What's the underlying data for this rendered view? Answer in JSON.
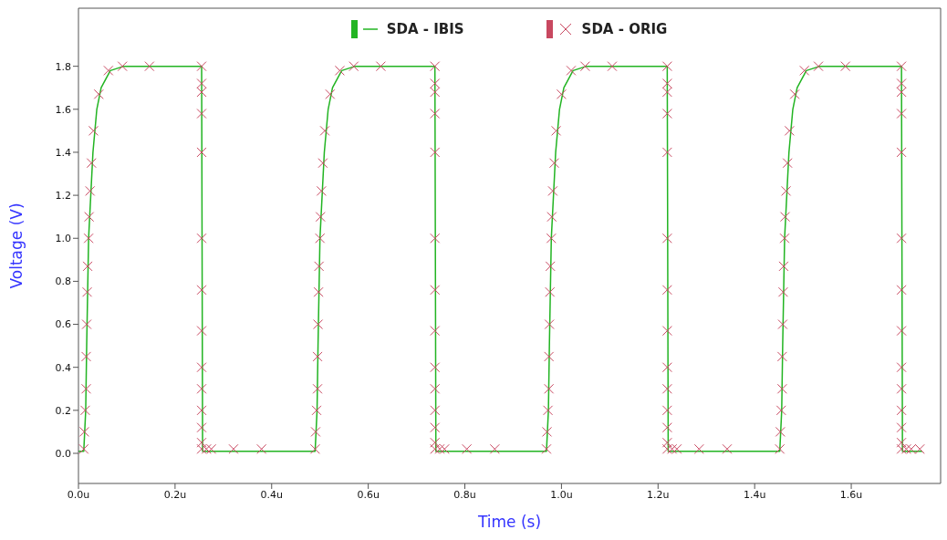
{
  "chart_data": {
    "type": "line",
    "xlabel": "Time (s)",
    "ylabel": "Voltage (V)",
    "legend": "top",
    "grid": false,
    "xlim": [
      0,
      1.785
    ],
    "ylim": [
      -0.14,
      2.07
    ],
    "xticks": [
      {
        "value": 0,
        "label": "0.0u"
      },
      {
        "value": 0.2,
        "label": "0.2u"
      },
      {
        "value": 0.4,
        "label": "0.4u"
      },
      {
        "value": 0.6,
        "label": "0.6u"
      },
      {
        "value": 0.8,
        "label": "0.8u"
      },
      {
        "value": 1.0,
        "label": "1.0u"
      },
      {
        "value": 1.2,
        "label": "1.2u"
      },
      {
        "value": 1.4,
        "label": "1.4u"
      },
      {
        "value": 1.6,
        "label": "1.6u"
      }
    ],
    "yticks": [
      {
        "value": 0,
        "label": "0.0"
      },
      {
        "value": 0.2,
        "label": "0.2"
      },
      {
        "value": 0.4,
        "label": "0.4"
      },
      {
        "value": 0.6,
        "label": "0.6"
      },
      {
        "value": 0.8,
        "label": "0.8"
      },
      {
        "value": 1.0,
        "label": "1.0"
      },
      {
        "value": 1.2,
        "label": "1.2"
      },
      {
        "value": 1.4,
        "label": "1.4"
      },
      {
        "value": 1.6,
        "label": "1.6"
      },
      {
        "value": 1.8,
        "label": "1.8"
      }
    ],
    "series": [
      {
        "name": "SDA - IBIS",
        "color": "#22b422",
        "line_style": "solid",
        "x": [
          0,
          0.011,
          0.015,
          0.017,
          0.021,
          0.03,
          0.038,
          0.047,
          0.066,
          0.094,
          0.255,
          0.257,
          0.49,
          0.494,
          0.496,
          0.5,
          0.509,
          0.517,
          0.526,
          0.545,
          0.573,
          0.738,
          0.74,
          0.969,
          0.973,
          0.975,
          0.979,
          0.988,
          0.996,
          1.005,
          1.024,
          1.052,
          1.219,
          1.221,
          1.452,
          1.456,
          1.458,
          1.462,
          1.471,
          1.479,
          1.488,
          1.507,
          1.535,
          1.704,
          1.706,
          1.747
        ],
        "values": [
          0.01,
          0.01,
          0.2,
          0.5,
          1.0,
          1.4,
          1.6,
          1.7,
          1.78,
          1.8,
          1.8,
          0.01,
          0.01,
          0.2,
          0.5,
          1.0,
          1.4,
          1.6,
          1.7,
          1.78,
          1.8,
          1.8,
          0.01,
          0.01,
          0.2,
          0.5,
          1.0,
          1.4,
          1.6,
          1.7,
          1.78,
          1.8,
          1.8,
          0.01,
          0.01,
          0.2,
          0.5,
          1.0,
          1.4,
          1.6,
          1.7,
          1.78,
          1.8,
          1.8,
          0.01,
          0.01
        ]
      },
      {
        "name": "SDA - ORIG",
        "type": "scatter",
        "marker": "cross",
        "color": "#c84860",
        "x": [
          0.011,
          0.012,
          0.014,
          0.016,
          0.016,
          0.017,
          0.018,
          0.019,
          0.021,
          0.022,
          0.024,
          0.027,
          0.031,
          0.042,
          0.062,
          0.091,
          0.147,
          0.255,
          0.255,
          0.255,
          0.255,
          0.255,
          0.255,
          0.255,
          0.255,
          0.255,
          0.255,
          0.255,
          0.255,
          0.255,
          0.255,
          0.265,
          0.275,
          0.321,
          0.379,
          0.49,
          0.491,
          0.493,
          0.495,
          0.495,
          0.496,
          0.497,
          0.498,
          0.5,
          0.501,
          0.503,
          0.506,
          0.51,
          0.521,
          0.541,
          0.57,
          0.626,
          0.738,
          0.738,
          0.738,
          0.738,
          0.738,
          0.738,
          0.738,
          0.738,
          0.738,
          0.738,
          0.738,
          0.738,
          0.738,
          0.738,
          0.748,
          0.758,
          0.804,
          0.862,
          0.969,
          0.97,
          0.972,
          0.974,
          0.974,
          0.975,
          0.976,
          0.977,
          0.979,
          0.98,
          0.982,
          0.985,
          0.989,
          1.0,
          1.02,
          1.049,
          1.105,
          1.219,
          1.219,
          1.219,
          1.219,
          1.219,
          1.219,
          1.219,
          1.219,
          1.219,
          1.219,
          1.219,
          1.219,
          1.219,
          1.219,
          1.229,
          1.239,
          1.285,
          1.343,
          1.452,
          1.453,
          1.455,
          1.457,
          1.457,
          1.458,
          1.459,
          1.46,
          1.462,
          1.463,
          1.465,
          1.468,
          1.472,
          1.483,
          1.503,
          1.532,
          1.588,
          1.704,
          1.704,
          1.704,
          1.704,
          1.704,
          1.704,
          1.704,
          1.704,
          1.704,
          1.704,
          1.704,
          1.704,
          1.704,
          1.704,
          1.714,
          1.724,
          1.742
        ],
        "values": [
          0.02,
          0.1,
          0.2,
          0.3,
          0.45,
          0.6,
          0.75,
          0.87,
          1.0,
          1.1,
          1.22,
          1.35,
          1.5,
          1.67,
          1.78,
          1.8,
          1.8,
          1.8,
          1.72,
          1.68,
          1.58,
          1.4,
          1.0,
          0.76,
          0.57,
          0.4,
          0.3,
          0.2,
          0.12,
          0.05,
          0.02,
          0.02,
          0.02,
          0.02,
          0.02,
          0.02,
          0.1,
          0.2,
          0.3,
          0.45,
          0.6,
          0.75,
          0.87,
          1.0,
          1.1,
          1.22,
          1.35,
          1.5,
          1.67,
          1.78,
          1.8,
          1.8,
          1.8,
          1.72,
          1.68,
          1.58,
          1.4,
          1.0,
          0.76,
          0.57,
          0.4,
          0.3,
          0.2,
          0.12,
          0.05,
          0.02,
          0.02,
          0.02,
          0.02,
          0.02,
          0.02,
          0.1,
          0.2,
          0.3,
          0.45,
          0.6,
          0.75,
          0.87,
          1.0,
          1.1,
          1.22,
          1.35,
          1.5,
          1.67,
          1.78,
          1.8,
          1.8,
          1.8,
          1.72,
          1.68,
          1.58,
          1.4,
          1.0,
          0.76,
          0.57,
          0.4,
          0.3,
          0.2,
          0.12,
          0.05,
          0.02,
          0.02,
          0.02,
          0.02,
          0.02,
          0.02,
          0.1,
          0.2,
          0.3,
          0.45,
          0.6,
          0.75,
          0.87,
          1.0,
          1.1,
          1.22,
          1.35,
          1.5,
          1.67,
          1.78,
          1.8,
          1.8,
          1.8,
          1.72,
          1.68,
          1.58,
          1.4,
          1.0,
          0.76,
          0.57,
          0.4,
          0.3,
          0.2,
          0.12,
          0.05,
          0.02,
          0.02,
          0.02,
          0.02
        ]
      }
    ]
  }
}
